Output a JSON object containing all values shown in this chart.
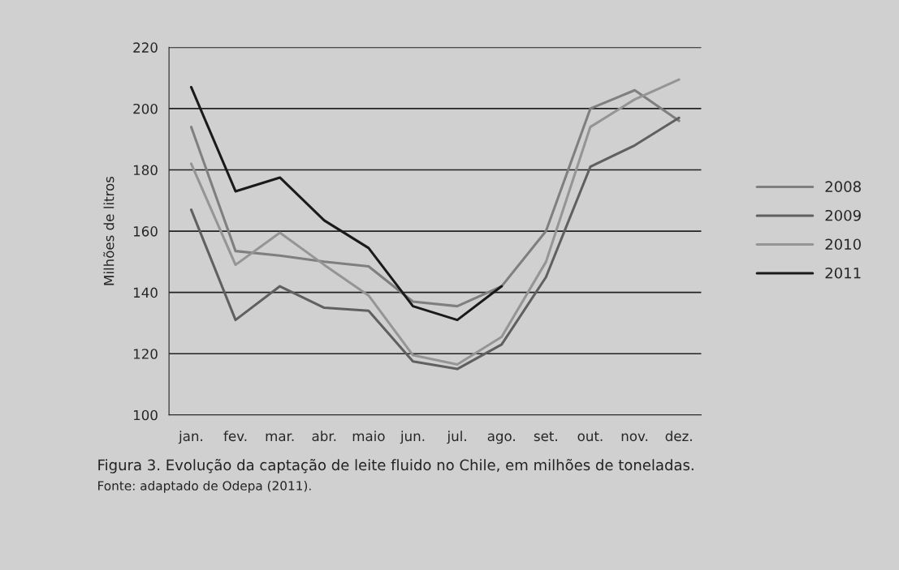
{
  "chart_data": {
    "type": "line",
    "ylabel": "Milhões de litros",
    "categories": [
      "jan.",
      "fev.",
      "mar.",
      "abr.",
      "maio",
      "jun.",
      "jul.",
      "ago.",
      "set.",
      "out.",
      "nov.",
      "dez."
    ],
    "series": [
      {
        "name": "2008",
        "color": "#7f7f7f",
        "values": [
          194,
          153.5,
          152,
          150,
          148.5,
          137,
          135.5,
          142,
          160,
          200,
          206,
          196
        ]
      },
      {
        "name": "2009",
        "color": "#606060",
        "values": [
          167,
          131,
          142,
          135,
          134,
          117.5,
          115,
          123,
          145,
          181,
          188,
          197
        ]
      },
      {
        "name": "2010",
        "color": "#959595",
        "values": [
          182,
          149,
          159.5,
          149,
          139,
          119.5,
          116.5,
          125.5,
          150,
          194,
          203,
          209.5
        ]
      },
      {
        "name": "2011",
        "color": "#1a1a1a",
        "values": [
          207,
          173,
          177.5,
          163.5,
          154.5,
          135.5,
          131,
          142,
          null,
          null,
          null,
          null
        ]
      }
    ],
    "ylim": [
      100,
      220
    ],
    "yticks": [
      100,
      120,
      140,
      160,
      180,
      200,
      220
    ],
    "grid": "y",
    "legend": "right",
    "marker": "none",
    "annotations": [
      "Figura 3. Evolução da captação de leite fluido no Chile, em milhões de toneladas.",
      "Fonte: adaptado de Odepa (2011)."
    ]
  }
}
